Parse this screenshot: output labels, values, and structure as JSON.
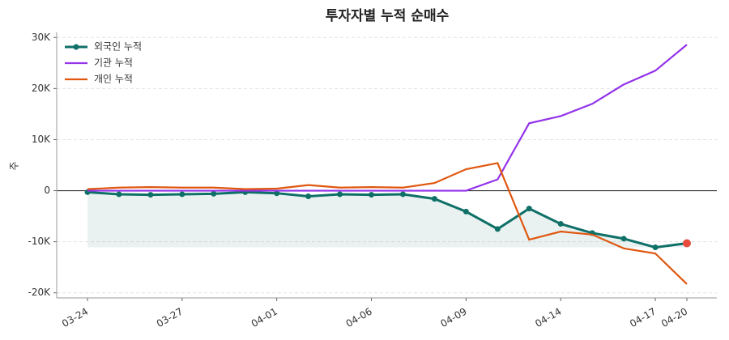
{
  "chart_data": {
    "type": "line",
    "title": "투자자별 누적 순매수",
    "y_label": "주",
    "categories": [
      "03-24",
      null,
      null,
      "03-27",
      null,
      null,
      "04-01",
      null,
      null,
      "04-06",
      null,
      null,
      "04-09",
      null,
      null,
      "04-14",
      null,
      null,
      "04-17",
      "04-20"
    ],
    "series": [
      {
        "name": "외국인 누적",
        "color": "#0f7068",
        "markers": true,
        "fill": true,
        "values": [
          -300,
          -700,
          -800,
          -700,
          -600,
          -300,
          -500,
          -1100,
          -700,
          -800,
          -700,
          -1600,
          -4100,
          -7500,
          -3500,
          -6500,
          -8300,
          -9400,
          -11100,
          -10300
        ]
      },
      {
        "name": "기관 누적",
        "color": "#9333ea",
        "values": [
          0,
          0,
          0,
          0,
          0,
          0,
          0,
          0,
          0,
          0,
          0,
          0,
          0,
          2200,
          13200,
          14600,
          17000,
          20800,
          23500,
          28600
        ]
      },
      {
        "name": "개인 누적",
        "color": "#e0570f",
        "values": [
          300,
          600,
          700,
          600,
          600,
          300,
          400,
          1100,
          600,
          700,
          600,
          1500,
          4200,
          5400,
          -9600,
          -8000,
          -8600,
          -11300,
          -12300,
          -18300
        ]
      }
    ],
    "last_point_color": "#e84c3d",
    "ylim": [
      -21000,
      31000
    ],
    "yticks": [
      {
        "value": -20000,
        "label": "-20K"
      },
      {
        "value": -10000,
        "label": "-10K"
      },
      0,
      {
        "value": 10000,
        "label": "10K"
      },
      {
        "value": 20000,
        "label": "20K"
      },
      {
        "value": 30000,
        "label": "30K"
      }
    ],
    "grid": true,
    "legend": "upper-left"
  }
}
